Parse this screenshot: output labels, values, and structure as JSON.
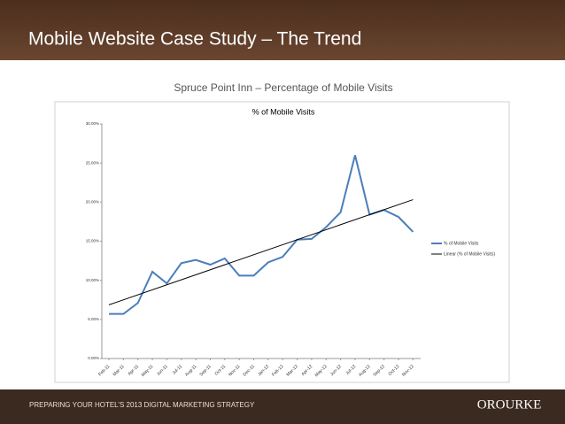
{
  "slide": {
    "title": "Mobile Website Case Study – The Trend",
    "subtitle": "Spruce Point Inn – Percentage of Mobile Visits",
    "footer": "PREPARING YOUR HOTEL’S 2013 DIGITAL MARKETING STRATEGY",
    "logo": "OROURKE"
  },
  "chart_data": {
    "type": "line",
    "title": "% of Mobile Visits",
    "categories": [
      "Feb-11",
      "Mar-11",
      "Apr-11",
      "May-11",
      "Jun-11",
      "Jul-11",
      "Aug-11",
      "Sep-11",
      "Oct-11",
      "Nov-11",
      "Dec-11",
      "Jan-12",
      "Feb-12",
      "Mar-12",
      "Apr-12",
      "May-12",
      "Jun-12",
      "Jul-12",
      "Aug-12",
      "Sep-12",
      "Oct-12",
      "Nov-12"
    ],
    "series": [
      {
        "name": "% of Mobile Visits",
        "color": "#4a7ebb",
        "values": [
          5.7,
          5.7,
          7.1,
          11.1,
          9.6,
          12.2,
          12.6,
          12.0,
          12.8,
          10.6,
          10.6,
          12.3,
          13.0,
          15.2,
          15.3,
          16.8,
          18.7,
          26.0,
          18.4,
          19.0,
          18.1,
          16.2
        ]
      }
    ],
    "trendline": {
      "name": "Linear (% of Mobile Visits)",
      "color": "#000000"
    },
    "ylim": [
      0,
      30
    ],
    "yticks": [
      {
        "value": 0,
        "label": "0.00%"
      },
      {
        "value": 5,
        "label": "5.00%"
      },
      {
        "value": 10,
        "label": "10.00%"
      },
      {
        "value": 15,
        "label": "15.00%"
      },
      {
        "value": 20,
        "label": "20.00%"
      },
      {
        "value": 25,
        "label": "25.00%"
      },
      {
        "value": 30,
        "label": "30.00%"
      }
    ],
    "legend": "right"
  }
}
